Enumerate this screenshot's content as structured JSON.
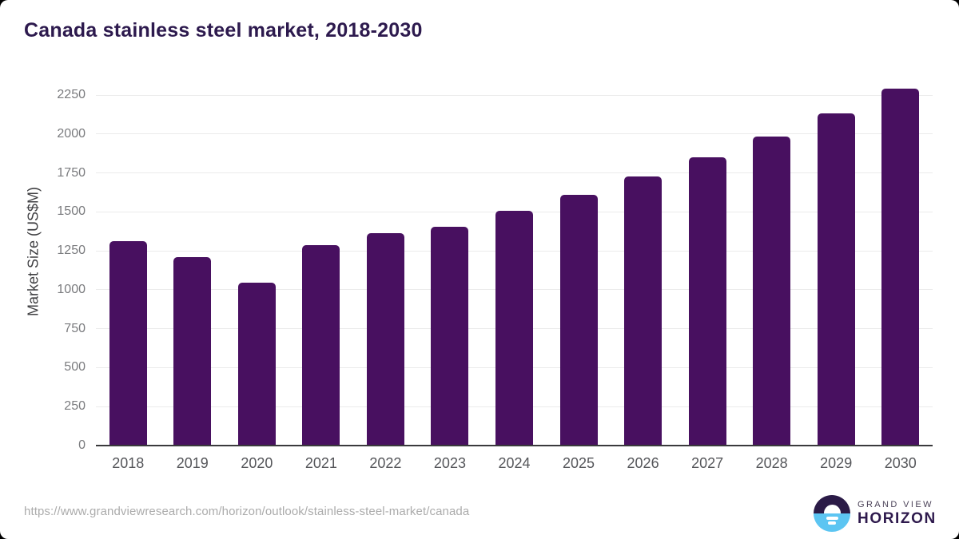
{
  "title": "Canada stainless steel market, 2018-2030",
  "chart_data": {
    "type": "bar",
    "title": "Canada stainless steel market, 2018-2030",
    "categories": [
      "2018",
      "2019",
      "2020",
      "2021",
      "2022",
      "2023",
      "2024",
      "2025",
      "2026",
      "2027",
      "2028",
      "2029",
      "2030"
    ],
    "values": [
      1310,
      1210,
      1045,
      1285,
      1365,
      1405,
      1505,
      1610,
      1725,
      1850,
      1985,
      2130,
      2290
    ],
    "xlabel": "",
    "ylabel": "Market Size (US$M)",
    "ylim": [
      0,
      2250
    ],
    "ytick_step": 250,
    "grid": "horizontal",
    "legend": "none",
    "bar_color": "#481060"
  },
  "colors": {
    "title_text": "#2d1a4e",
    "bar": "#481060",
    "logo_dark_purple": "#2b1b47",
    "logo_light_blue": "#5cc5f2"
  },
  "footer": {
    "source_url": "https://www.grandviewresearch.com/horizon/outlook/stainless-steel-market/canada",
    "logo": {
      "line1": "GRAND VIEW",
      "line2": "HORIZON"
    }
  }
}
